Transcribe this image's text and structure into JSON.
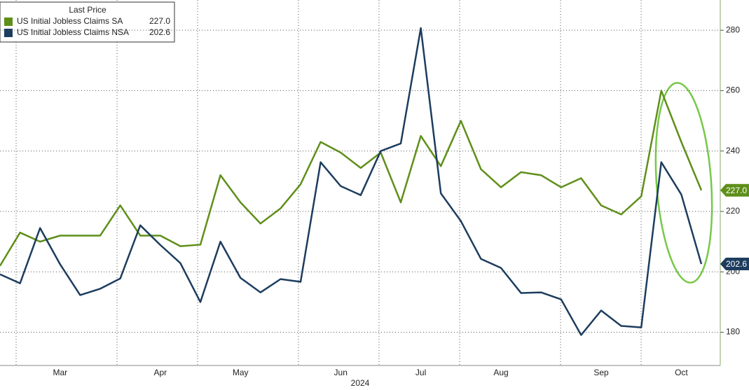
{
  "chart_data": {
    "type": "line",
    "xlabel": "2024",
    "legend_title": "Last Price",
    "categories": [
      null,
      null,
      null,
      "Mar",
      null,
      null,
      null,
      null,
      "Apr",
      null,
      null,
      null,
      "May",
      null,
      null,
      null,
      null,
      "Jun",
      null,
      null,
      null,
      "Jul",
      null,
      null,
      null,
      "Aug",
      null,
      null,
      null,
      null,
      "Sep",
      null,
      null,
      null,
      "Oct",
      null
    ],
    "series": [
      {
        "name": "US Initial Jobless Claims SA",
        "color": "#5f8f19",
        "values": [
          202,
          213,
          210,
          212,
          212,
          212,
          222,
          212,
          212,
          208.5,
          209,
          232,
          223,
          216,
          221,
          229,
          243,
          239.5,
          234.4,
          239.5,
          223,
          245,
          235,
          250,
          234,
          228,
          233,
          232,
          228,
          231,
          222,
          219,
          225,
          260,
          243,
          227.0
        ],
        "value_labels": [
          null,
          null,
          null,
          null,
          null,
          null,
          null,
          null,
          null,
          null,
          null,
          null,
          null,
          null,
          null,
          null,
          null,
          null,
          null,
          null,
          null,
          null,
          null,
          null,
          null,
          null,
          null,
          null,
          null,
          null,
          null,
          null,
          null,
          null,
          null,
          "227.0"
        ]
      },
      {
        "name": "US Initial Jobless Claims NSA",
        "color": "#1d3d5e",
        "values": [
          199.2,
          196.2,
          214.5,
          202.5,
          192.3,
          194.4,
          197.8,
          215.4,
          208.9,
          202.9,
          190,
          210,
          198,
          193.2,
          197.6,
          196.7,
          236.3,
          228.4,
          225.4,
          240,
          242.5,
          280.7,
          226,
          216.8,
          204.3,
          201.3,
          193,
          193.2,
          190.9,
          179.1,
          187.2,
          182.1,
          181.6,
          236.3,
          225.6,
          202.6
        ],
        "value_labels": [
          null,
          null,
          null,
          null,
          null,
          null,
          null,
          null,
          null,
          null,
          null,
          null,
          null,
          null,
          null,
          null,
          null,
          null,
          null,
          null,
          null,
          null,
          null,
          null,
          null,
          null,
          null,
          null,
          null,
          null,
          null,
          null,
          null,
          null,
          null,
          "202.6"
        ]
      }
    ],
    "ylim": [
      169,
      290
    ],
    "yticks": [
      180,
      200,
      220,
      240,
      260,
      280
    ],
    "grid": true,
    "legend_position": "upper-left"
  }
}
